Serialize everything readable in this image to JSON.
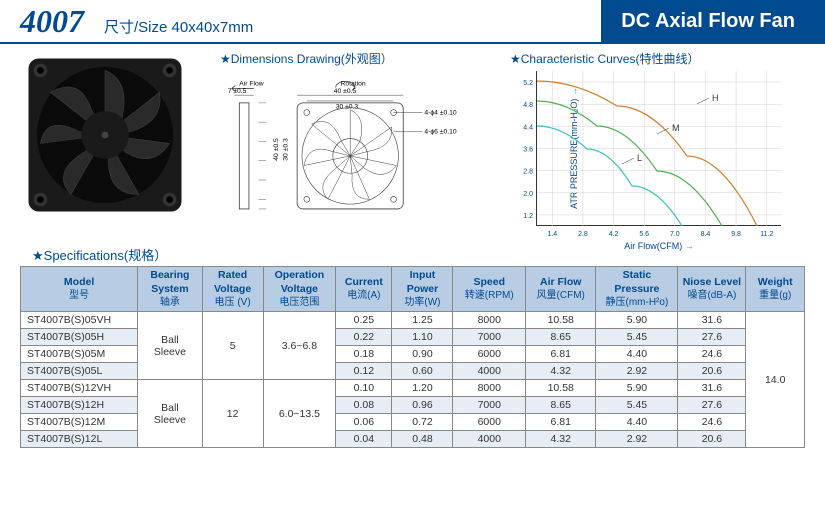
{
  "header": {
    "model_number": "4007",
    "size_text": "尺寸/Size 40x40x7mm",
    "product_title": "DC Axial Flow Fan"
  },
  "sections": {
    "dimensions_title": "★Dimensions Drawing(外观图）",
    "curves_title": "★Characteristic Curves(特性曲线）",
    "specs_title": "★Specifications(规格）"
  },
  "dimensions": {
    "air_flow_label": "Air Flow",
    "rotation_label": "Rotation",
    "thickness": "7 ±0.5",
    "outer_w": "40 ±0.5",
    "hole_pitch": "30 ±0.3",
    "outer_h": "40 ±0.5",
    "hole_pitch_v": "30 ±0.3",
    "screw_a": "4-ɸ4 ±0.10",
    "screw_b": "4-ɸ6 ±0.10"
  },
  "chart": {
    "ylabel": "ATR PRESSURE(mm-H₂O)",
    "xlabel": "Air Flow(CFM)",
    "yticks": [
      "1.2",
      "2.0",
      "2.8",
      "3.6",
      "4.4",
      "4.8",
      "5.2"
    ],
    "xticks": [
      "1.4",
      "2.8",
      "4.2",
      "5.6",
      "7.0",
      "8.4",
      "9.8",
      "11.2"
    ],
    "series": [
      {
        "name": "H",
        "color": "#d08030"
      },
      {
        "name": "M",
        "color": "#50b050"
      },
      {
        "name": "L",
        "color": "#40c0c0"
      }
    ],
    "grid_color": "#d0d0d0",
    "background": "#ffffff",
    "line_width": 1.2
  },
  "table": {
    "columns": [
      {
        "en": "Model",
        "cn": "型号",
        "w": 100
      },
      {
        "en": "Bearing System",
        "cn": "轴承",
        "w": 55
      },
      {
        "en": "Rated Voltage",
        "cn": "电压 (V)",
        "w": 52
      },
      {
        "en": "Operation Voltage",
        "cn": "电压范围",
        "w": 62
      },
      {
        "en": "Current",
        "cn": "电流(A)",
        "w": 48
      },
      {
        "en": "Input Power",
        "cn": "功率(W)",
        "w": 52
      },
      {
        "en": "Speed",
        "cn": "转速(RPM)",
        "w": 62
      },
      {
        "en": "Air Flow",
        "cn": "风量(CFM)",
        "w": 60
      },
      {
        "en": "Static Pressure",
        "cn": "静压(mm-H²o)",
        "w": 70
      },
      {
        "en": "Niose Level",
        "cn": "噪音(dB-A)",
        "w": 58
      },
      {
        "en": "Weight",
        "cn": "重量(g)",
        "w": 50
      }
    ],
    "groups": [
      {
        "bearing": "Ball Sleeve",
        "voltage": "5",
        "op_voltage": "3.6~6.8",
        "rows": [
          {
            "model": "ST4007B(S)05VH",
            "cur": "0.25",
            "pwr": "1.25",
            "spd": "8000",
            "af": "10.58",
            "sp": "5.90",
            "nl": "31.6"
          },
          {
            "model": "ST4007B(S)05H",
            "cur": "0.22",
            "pwr": "1.10",
            "spd": "7000",
            "af": "8.65",
            "sp": "5.45",
            "nl": "27.6"
          },
          {
            "model": "ST4007B(S)05M",
            "cur": "0.18",
            "pwr": "0.90",
            "spd": "6000",
            "af": "6.81",
            "sp": "4.40",
            "nl": "24.6"
          },
          {
            "model": "ST4007B(S)05L",
            "cur": "0.12",
            "pwr": "0.60",
            "spd": "4000",
            "af": "4.32",
            "sp": "2.92",
            "nl": "20.6"
          }
        ]
      },
      {
        "bearing": "Ball Sleeve",
        "voltage": "12",
        "op_voltage": "6.0~13.5",
        "rows": [
          {
            "model": "ST4007B(S)12VH",
            "cur": "0.10",
            "pwr": "1.20",
            "spd": "8000",
            "af": "10.58",
            "sp": "5.90",
            "nl": "31.6"
          },
          {
            "model": "ST4007B(S)12H",
            "cur": "0.08",
            "pwr": "0.96",
            "spd": "7000",
            "af": "8.65",
            "sp": "5.45",
            "nl": "27.6"
          },
          {
            "model": "ST4007B(S)12M",
            "cur": "0.06",
            "pwr": "0.72",
            "spd": "6000",
            "af": "6.81",
            "sp": "4.40",
            "nl": "24.6"
          },
          {
            "model": "ST4007B(S)12L",
            "cur": "0.04",
            "pwr": "0.48",
            "spd": "4000",
            "af": "4.32",
            "sp": "2.92",
            "nl": "20.6"
          }
        ]
      }
    ],
    "weight": "14.0",
    "shade_color": "#e6edf5",
    "header_bg": "#b8cce4"
  },
  "colors": {
    "brand": "#004a8f",
    "border": "#888888"
  }
}
